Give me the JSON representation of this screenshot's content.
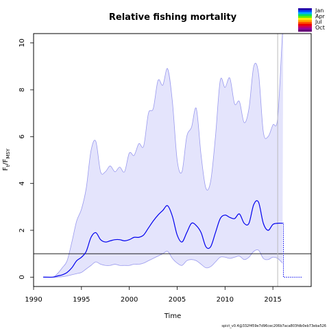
{
  "chart_data": {
    "type": "line",
    "title": "Relative fishing mortality",
    "ylabel": {
      "main": "F",
      "sub1": "t",
      "sep": "/F",
      "sub2": "MSY"
    },
    "xlabel": "Time",
    "xlim": [
      1990,
      2019
    ],
    "ylim": [
      -0.4,
      10.4
    ],
    "x_ticks": [
      1990,
      1995,
      2000,
      2005,
      2010,
      2015
    ],
    "y_ticks": [
      0,
      2,
      4,
      6,
      8,
      10
    ],
    "reference_line_y": 1,
    "vertical_line_x": 2015.5,
    "series": [
      {
        "role": "estimate",
        "color": "#0000ee",
        "x": [
          1991.0,
          1992.0,
          1992.5,
          1993.0,
          1993.5,
          1994.0,
          1994.5,
          1995.0,
          1995.5,
          1996.0,
          1996.5,
          1997.0,
          1997.5,
          1998.0,
          1998.5,
          1999.0,
          1999.5,
          2000.0,
          2000.5,
          2001.0,
          2001.5,
          2002.0,
          2002.5,
          2003.0,
          2003.5,
          2004.0,
          2004.5,
          2005.0,
          2005.5,
          2006.0,
          2006.5,
          2007.0,
          2007.5,
          2008.0,
          2008.5,
          2009.0,
          2009.5,
          2010.0,
          2010.5,
          2011.0,
          2011.5,
          2012.0,
          2012.5,
          2013.0,
          2013.5,
          2014.0,
          2014.5,
          2015.0,
          2015.5,
          2016.0
        ],
        "y": [
          0.0,
          0.0,
          0.05,
          0.1,
          0.2,
          0.4,
          0.7,
          0.85,
          1.1,
          1.7,
          1.9,
          1.6,
          1.5,
          1.55,
          1.6,
          1.6,
          1.55,
          1.6,
          1.7,
          1.7,
          1.8,
          2.1,
          2.4,
          2.65,
          2.85,
          3.05,
          2.6,
          1.8,
          1.5,
          1.9,
          2.3,
          2.2,
          1.9,
          1.3,
          1.3,
          1.9,
          2.5,
          2.65,
          2.55,
          2.5,
          2.7,
          2.3,
          2.3,
          3.1,
          3.2,
          2.3,
          2.0,
          2.25,
          2.3,
          2.3
        ]
      },
      {
        "role": "upper-ci",
        "color": "#9999ee",
        "x": [
          1991.0,
          1992.0,
          1992.5,
          1993.0,
          1993.5,
          1994.0,
          1994.5,
          1995.0,
          1995.5,
          1996.0,
          1996.5,
          1997.0,
          1997.5,
          1998.0,
          1998.5,
          1999.0,
          1999.5,
          2000.0,
          2000.5,
          2001.0,
          2001.5,
          2002.0,
          2002.5,
          2003.0,
          2003.5,
          2004.0,
          2004.5,
          2005.0,
          2005.5,
          2006.0,
          2006.5,
          2007.0,
          2007.5,
          2008.0,
          2008.5,
          2009.0,
          2009.5,
          2010.0,
          2010.5,
          2011.0,
          2011.5,
          2012.0,
          2012.5,
          2013.0,
          2013.5,
          2014.0,
          2014.5,
          2015.0,
          2015.5,
          2016.0,
          2016.08
        ],
        "y": [
          0.0,
          0.0,
          0.15,
          0.4,
          0.7,
          1.5,
          2.4,
          2.9,
          3.8,
          5.4,
          5.8,
          4.5,
          4.5,
          4.75,
          4.5,
          4.7,
          4.5,
          5.3,
          5.2,
          5.7,
          5.6,
          7.0,
          7.2,
          8.4,
          8.2,
          8.9,
          7.5,
          5.0,
          4.5,
          6.0,
          6.4,
          7.2,
          5.2,
          3.8,
          4.1,
          6.0,
          8.4,
          8.1,
          8.5,
          7.4,
          7.5,
          6.6,
          7.2,
          9.0,
          8.7,
          6.2,
          6.0,
          6.5,
          6.8,
          10.4,
          10.4
        ]
      },
      {
        "role": "lower-ci",
        "color": "#9999ee",
        "x": [
          1991.0,
          1992.0,
          1992.5,
          1993.0,
          1993.5,
          1994.0,
          1994.5,
          1995.0,
          1995.5,
          1996.0,
          1996.5,
          1997.0,
          1997.5,
          1998.0,
          1998.5,
          1999.0,
          1999.5,
          2000.0,
          2000.5,
          2001.0,
          2001.5,
          2002.0,
          2002.5,
          2003.0,
          2003.5,
          2004.0,
          2004.5,
          2005.0,
          2005.5,
          2006.0,
          2006.5,
          2007.0,
          2007.5,
          2008.0,
          2008.5,
          2009.0,
          2009.5,
          2010.0,
          2010.5,
          2011.0,
          2011.5,
          2012.0,
          2012.5,
          2013.0,
          2013.5,
          2014.0,
          2014.5,
          2015.0,
          2015.5,
          2016.0
        ],
        "y": [
          0.0,
          0.0,
          0.0,
          0.02,
          0.05,
          0.1,
          0.15,
          0.2,
          0.35,
          0.5,
          0.65,
          0.55,
          0.5,
          0.5,
          0.55,
          0.5,
          0.5,
          0.5,
          0.55,
          0.55,
          0.6,
          0.7,
          0.8,
          0.9,
          1.0,
          1.1,
          0.8,
          0.6,
          0.5,
          0.7,
          0.75,
          0.7,
          0.55,
          0.4,
          0.45,
          0.65,
          0.85,
          0.85,
          0.8,
          0.85,
          0.9,
          0.75,
          0.85,
          1.1,
          1.15,
          0.8,
          0.75,
          0.85,
          0.8,
          0.6
        ]
      },
      {
        "role": "forecast",
        "color": "#0000ee",
        "style": "dotted",
        "x": [
          2016.0,
          2016.1,
          2016.1,
          2018.0
        ],
        "y": [
          2.3,
          2.3,
          0.0,
          0.0
        ]
      }
    ],
    "legend": {
      "placement": "top-right",
      "type": "season-color-gradient",
      "labels": [
        "Jan",
        "Apr",
        "Jul",
        "Oct"
      ],
      "colors": [
        "#2200aa",
        "#0044ff",
        "#00aaff",
        "#00dd66",
        "#66ee00",
        "#ffee00",
        "#ffaa00",
        "#ff5500",
        "#ee0000",
        "#cc0055",
        "#990099",
        "#660077"
      ]
    },
    "footer": "spict_v0.4@332f459e7d96cec206b7aca803fdb0eb73eba526"
  }
}
